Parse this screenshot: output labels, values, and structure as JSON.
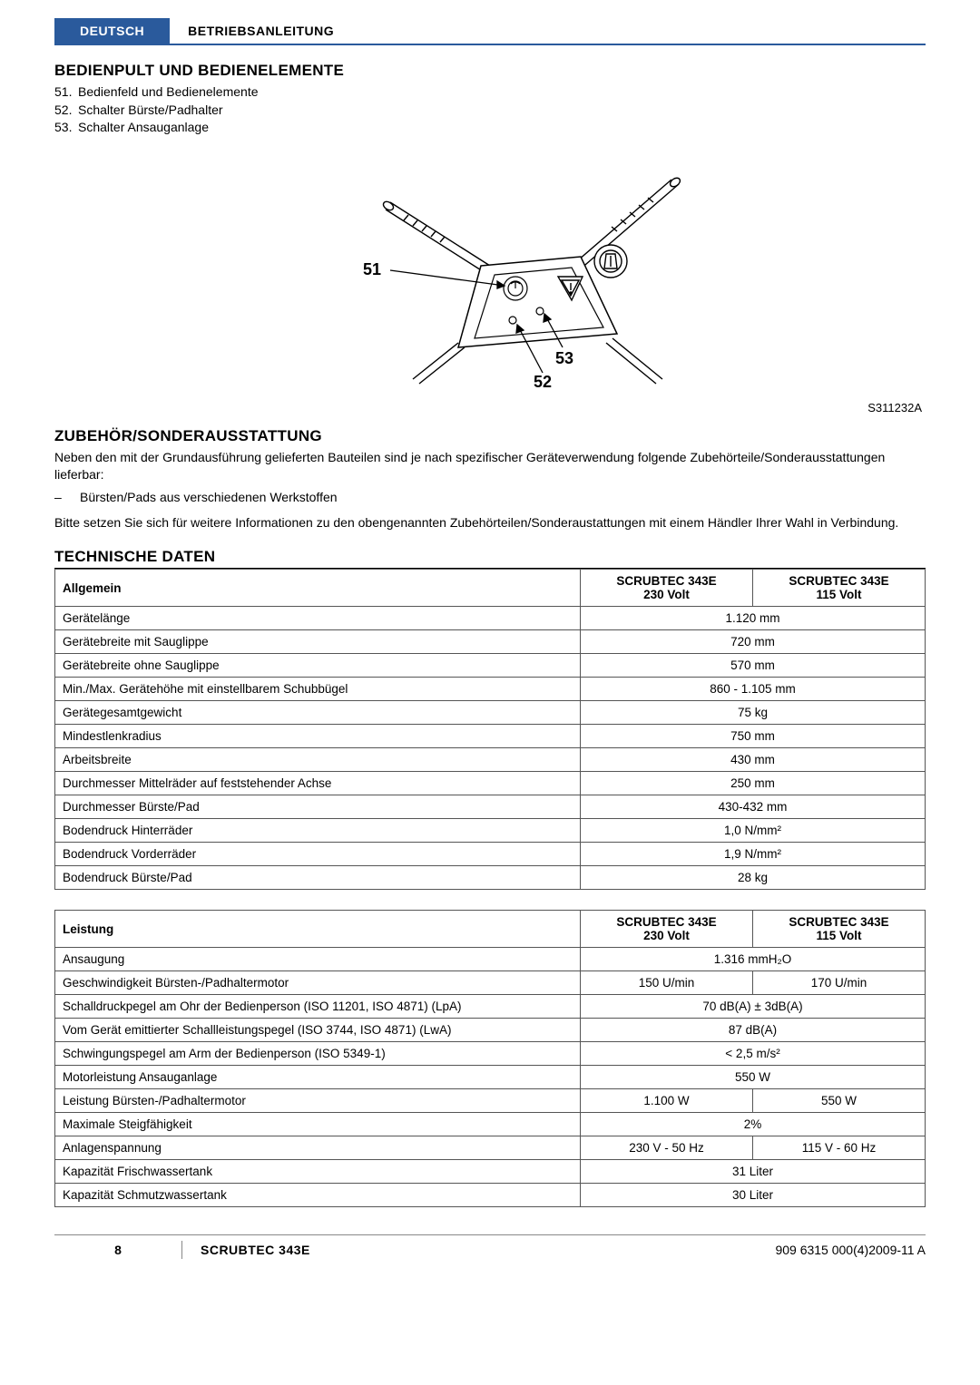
{
  "header": {
    "language": "DEUTSCH",
    "doc_type": "BETRIEBSANLEITUNG"
  },
  "section1": {
    "title": "BEDIENPULT UND BEDIENELEMENTE",
    "items": [
      {
        "num": "51.",
        "text": "Bedienfeld und Bedienelemente"
      },
      {
        "num": "52.",
        "text": "Schalter Bürste/Padhalter"
      },
      {
        "num": "53.",
        "text": "Schalter Ansauganlage"
      }
    ]
  },
  "diagram": {
    "labels": {
      "a": "51",
      "b": "52",
      "c": "53"
    },
    "figure_id": "S311232A",
    "stroke": "#000000",
    "label_fontsize": 18,
    "label_fontweight": "bold"
  },
  "section2": {
    "title": "ZUBEHÖR/SONDERAUSSTATTUNG",
    "para1": "Neben den mit der Grundausführung gelieferten Bauteilen sind je nach spezifischer Geräteverwendung folgende Zubehörteile/Sonderausstattungen lieferbar:",
    "bullet": "Bürsten/Pads aus verschiedenen Werkstoffen",
    "para2": "Bitte setzen Sie sich für weitere Informationen zu den obengenannten Zubehörteilen/Sonderaustattungen mit einem Händler Ihrer Wahl in Verbindung."
  },
  "tech": {
    "title": "TECHNISCHE DATEN"
  },
  "table1": {
    "head_label": "Allgemein",
    "model_a": "SCRUBTEC 343E",
    "model_a_sub": "230 Volt",
    "model_b": "SCRUBTEC 343E",
    "model_b_sub": "115 Volt",
    "rows": [
      {
        "label": "Gerätelänge",
        "span": true,
        "val": "1.120 mm"
      },
      {
        "label": "Gerätebreite mit Sauglippe",
        "span": true,
        "val": "720 mm"
      },
      {
        "label": "Gerätebreite ohne Sauglippe",
        "span": true,
        "val": "570 mm"
      },
      {
        "label": "Min./Max. Gerätehöhe mit einstellbarem Schubbügel",
        "span": true,
        "val": "860 - 1.105 mm"
      },
      {
        "label": "Gerätegesamtgewicht",
        "span": true,
        "val": "75 kg"
      },
      {
        "label": "Mindestlenkradius",
        "span": true,
        "val": "750 mm"
      },
      {
        "label": "Arbeitsbreite",
        "span": true,
        "val": "430 mm"
      },
      {
        "label": "Durchmesser Mittelräder auf feststehender Achse",
        "span": true,
        "val": "250 mm"
      },
      {
        "label": "Durchmesser Bürste/Pad",
        "span": true,
        "val": "430-432 mm"
      },
      {
        "label": "Bodendruck Hinterräder",
        "span": true,
        "val_html": "1,0 N/mm²"
      },
      {
        "label": "Bodendruck Vorderräder",
        "span": true,
        "val_html": "1,9 N/mm²"
      },
      {
        "label": "Bodendruck Bürste/Pad",
        "span": true,
        "val": "28 kg"
      }
    ]
  },
  "table2": {
    "head_label": "Leistung",
    "model_a": "SCRUBTEC 343E",
    "model_a_sub": "230 Volt",
    "model_b": "SCRUBTEC 343E",
    "model_b_sub": "115 Volt",
    "rows": [
      {
        "label": "Ansaugung",
        "span": true,
        "val_html": "1.316 mmH₂O"
      },
      {
        "label": "Geschwindigkeit Bürsten-/Padhaltermotor",
        "span": false,
        "val_a": "150 U/min",
        "val_b": "170 U/min"
      },
      {
        "label": "Schalldruckpegel am Ohr der Bedienperson (ISO 11201, ISO 4871) (LpA)",
        "span": true,
        "val": "70 dB(A) ± 3dB(A)"
      },
      {
        "label": "Vom Gerät emittierter Schallleistungspegel (ISO 3744, ISO 4871) (LwA)",
        "span": true,
        "val": "87 dB(A)"
      },
      {
        "label": "Schwingungspegel am Arm der Bedienperson (ISO 5349-1)",
        "span": true,
        "val_html": "< 2,5 m/s²"
      },
      {
        "label": "Motorleistung Ansauganlage",
        "span": true,
        "val": "550 W"
      },
      {
        "label": "Leistung Bürsten-/Padhaltermotor",
        "span": false,
        "val_a": "1.100 W",
        "val_b": "550 W"
      },
      {
        "label": "Maximale Steigfähigkeit",
        "span": true,
        "val": "2%"
      },
      {
        "label": "Anlagenspannung",
        "span": false,
        "val_a": "230 V - 50 Hz",
        "val_b": "115 V - 60 Hz"
      },
      {
        "label": "Kapazität Frischwassertank",
        "span": true,
        "val": "31 Liter"
      },
      {
        "label": "Kapazität Schmutzwassertank",
        "span": true,
        "val": "30 Liter"
      }
    ]
  },
  "footer": {
    "page": "8",
    "model": "SCRUBTEC 343E",
    "revision": "909 6315 000(4)2009-11 A"
  },
  "colors": {
    "accent": "#2a5a9c",
    "text": "#000000",
    "border": "#555555",
    "footer_rule": "#888888"
  }
}
